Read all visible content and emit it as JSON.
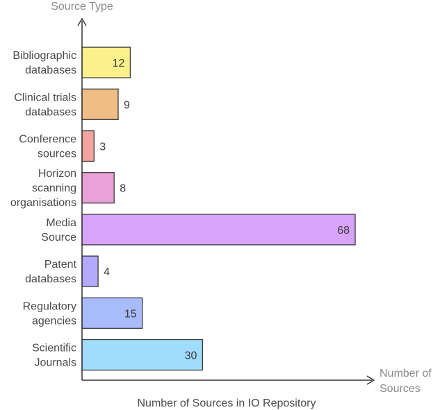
{
  "chart_data": {
    "type": "bar",
    "orientation": "horizontal",
    "title": "Number of Sources in IO Repository",
    "ylabel": "Source Type",
    "xlabel": "Number of Sources",
    "categories": [
      "Bibliographic databases",
      "Clinical trials databases",
      "Conference sources",
      "Horizon scanning organisations",
      "Media Source",
      "Patent databases",
      "Regulatory agencies",
      "Scientific Journals"
    ],
    "category_lines": [
      [
        "Bibliographic",
        "databases"
      ],
      [
        "Clinical trials",
        "databases"
      ],
      [
        "Conference",
        "sources"
      ],
      [
        "Horizon",
        "scanning",
        "organisations"
      ],
      [
        "Media",
        "Source"
      ],
      [
        "Patent",
        "databases"
      ],
      [
        "Regulatory",
        "agencies"
      ],
      [
        "Scientific",
        "Journals"
      ]
    ],
    "values": [
      12,
      9,
      3,
      8,
      68,
      4,
      15,
      30
    ],
    "colors": [
      "#fcf08a",
      "#efbe87",
      "#f1a3a0",
      "#e8a2d8",
      "#d8a3fb",
      "#b4a9fb",
      "#a8bcfb",
      "#a0dcfb"
    ],
    "xlim": [
      0,
      72
    ],
    "grid": false,
    "legend": "none"
  }
}
